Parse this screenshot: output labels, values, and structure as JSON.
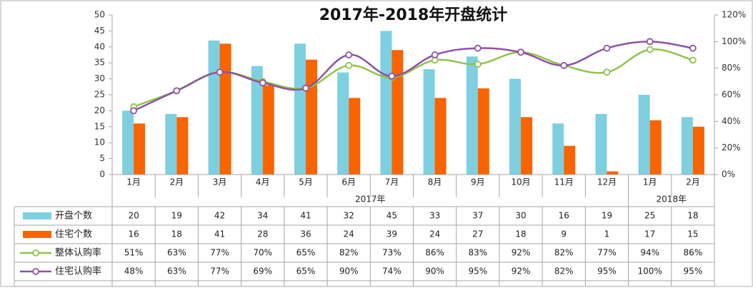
{
  "chart_data": {
    "type": "bar",
    "title": "2017年-2018年开盘统计",
    "categories": [
      "1月",
      "2月",
      "3月",
      "4月",
      "5月",
      "6月",
      "7月",
      "8月",
      "9月",
      "10月",
      "11月",
      "12月",
      "1月",
      "2月"
    ],
    "year_groups": [
      {
        "label": "2017年",
        "count": 12
      },
      {
        "label": "2018年",
        "count": 2
      }
    ],
    "left_axis": {
      "ticks": [
        "0",
        "5",
        "10",
        "15",
        "20",
        "25",
        "30",
        "35",
        "40",
        "45",
        "50"
      ],
      "ylim": [
        0,
        50
      ]
    },
    "right_axis": {
      "ticks": [
        "0%",
        "20%",
        "40%",
        "60%",
        "80%",
        "100%",
        "120%"
      ],
      "ylim": [
        0,
        120
      ]
    },
    "series": [
      {
        "name": "开盘个数",
        "kind": "bar",
        "axis": "left",
        "color": "#7ecfe0",
        "values": [
          20,
          19,
          42,
          34,
          41,
          32,
          45,
          33,
          37,
          30,
          16,
          19,
          25,
          18
        ],
        "labels": [
          "20",
          "19",
          "42",
          "34",
          "41",
          "32",
          "45",
          "33",
          "37",
          "30",
          "16",
          "19",
          "25",
          "18"
        ]
      },
      {
        "name": "住宅个数",
        "kind": "bar",
        "axis": "left",
        "color": "#f86400",
        "values": [
          16,
          18,
          41,
          28,
          36,
          24,
          39,
          24,
          27,
          18,
          9,
          1,
          17,
          15
        ],
        "labels": [
          "16",
          "18",
          "41",
          "28",
          "36",
          "24",
          "39",
          "24",
          "27",
          "18",
          "9",
          "1",
          "17",
          "15"
        ]
      },
      {
        "name": "整体认购率",
        "kind": "line",
        "axis": "right",
        "color": "#8fc44a",
        "values": [
          51,
          63,
          77,
          70,
          65,
          82,
          73,
          86,
          83,
          92,
          82,
          77,
          94,
          86
        ],
        "labels": [
          "51%",
          "63%",
          "77%",
          "70%",
          "65%",
          "82%",
          "73%",
          "86%",
          "83%",
          "92%",
          "82%",
          "77%",
          "94%",
          "86%"
        ]
      },
      {
        "name": "住宅认购率",
        "kind": "line",
        "axis": "right",
        "color": "#8e52a5",
        "values": [
          48,
          63,
          77,
          69,
          65,
          90,
          74,
          90,
          95,
          92,
          82,
          95,
          100,
          95
        ],
        "labels": [
          "48%",
          "63%",
          "77%",
          "69%",
          "65%",
          "90%",
          "74%",
          "90%",
          "95%",
          "92%",
          "82%",
          "95%",
          "100%",
          "95%"
        ]
      }
    ],
    "grid": false,
    "legend": "table-left"
  }
}
